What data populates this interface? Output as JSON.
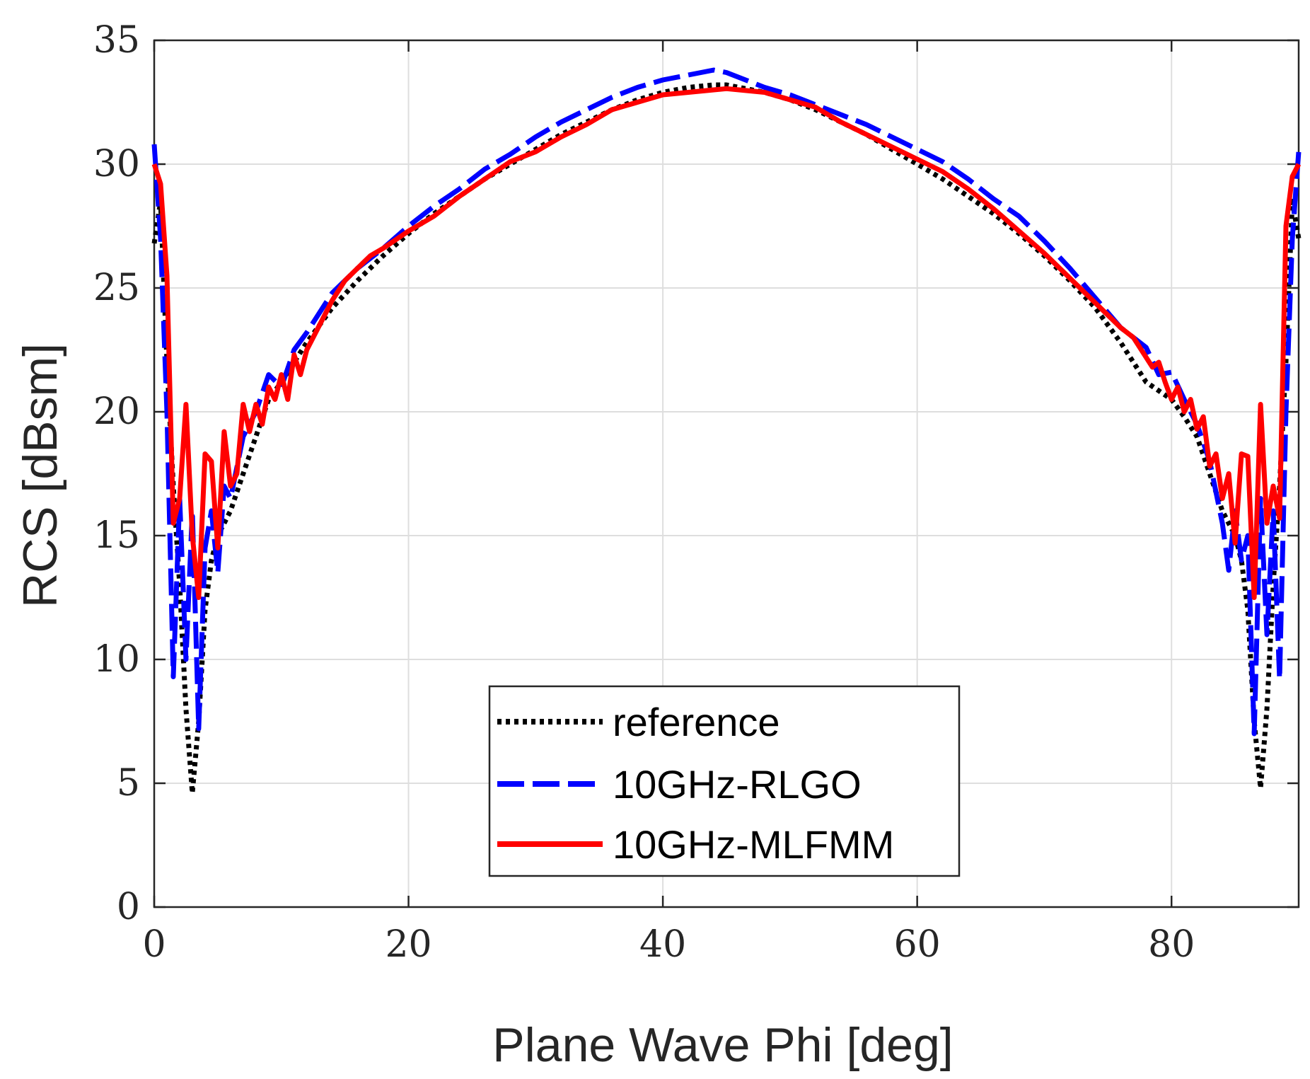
{
  "chart_data": {
    "type": "line",
    "title": "",
    "xlabel": "Plane Wave Phi [deg]",
    "ylabel": "RCS [dBsm]",
    "xlim": [
      0,
      90
    ],
    "ylim": [
      0,
      35
    ],
    "xticks": [
      0,
      20,
      40,
      60,
      80
    ],
    "yticks": [
      0,
      5,
      10,
      15,
      20,
      25,
      30,
      35
    ],
    "xtick_labels": [
      "0",
      "20",
      "40",
      "60",
      "80"
    ],
    "ytick_labels": [
      "0",
      "5",
      "10",
      "15",
      "20",
      "25",
      "30",
      "35"
    ],
    "grid": true,
    "legend_position": "bottom-center",
    "series": [
      {
        "name": "reference",
        "color": "#000000",
        "style": "dotted",
        "x": [
          0,
          0.5,
          1,
          1.5,
          2,
          2.5,
          3,
          3.5,
          4,
          4.5,
          5,
          5.5,
          6,
          7,
          8,
          9,
          10,
          12,
          14,
          16,
          18,
          20,
          22,
          24,
          26,
          28,
          30,
          32,
          34,
          36,
          38,
          40,
          42,
          44,
          45,
          46,
          48,
          50,
          52,
          54,
          56,
          58,
          60,
          62,
          64,
          66,
          68,
          70,
          72,
          74,
          76,
          78,
          80,
          81,
          82,
          83,
          84,
          84.5,
          85,
          85.5,
          86,
          86.5,
          87,
          87.5,
          88,
          88.5,
          89,
          89.5,
          90
        ],
        "y": [
          26.8,
          28.5,
          22,
          17,
          13,
          8,
          4.6,
          7.5,
          12,
          14,
          15,
          15.5,
          16,
          17.5,
          19,
          20.5,
          21.2,
          22.8,
          24.2,
          25.3,
          26.3,
          27.2,
          28,
          28.7,
          29.4,
          30,
          30.6,
          31.2,
          31.7,
          32.2,
          32.6,
          32.9,
          33.1,
          33.2,
          33.2,
          33.1,
          32.9,
          32.6,
          32.2,
          31.7,
          31.2,
          30.6,
          30,
          29.4,
          28.7,
          28,
          27.2,
          26.3,
          25.3,
          24.2,
          22.8,
          21.2,
          20.5,
          19.8,
          19,
          17.5,
          16,
          15.5,
          15,
          14,
          12,
          7.5,
          4.8,
          8,
          13,
          17,
          22,
          28.5,
          27
        ]
      },
      {
        "name": "10GHz-RLGO",
        "color": "#0000ff",
        "style": "dashed",
        "x": [
          0,
          0.5,
          1,
          1.5,
          2,
          2.5,
          3,
          3.5,
          4,
          4.5,
          5,
          5.5,
          6,
          7,
          8,
          9,
          10,
          11,
          12,
          14,
          16,
          18,
          20,
          22,
          24,
          26,
          28,
          30,
          32,
          34,
          36,
          38,
          40,
          42,
          44,
          45,
          46,
          48,
          50,
          52,
          54,
          56,
          58,
          60,
          62,
          64,
          66,
          68,
          70,
          72,
          74,
          76,
          78,
          79,
          80,
          81,
          82,
          83,
          84,
          84.5,
          85,
          85.5,
          86,
          86.5,
          87,
          87.5,
          88,
          88.5,
          89,
          89.5,
          90
        ],
        "y": [
          30.8,
          27,
          20,
          9.3,
          16.5,
          10,
          16,
          7.2,
          14.5,
          16,
          13.5,
          17,
          16.5,
          19,
          20,
          21.5,
          21,
          22.5,
          23.2,
          24.8,
          25.8,
          26.6,
          27.5,
          28.3,
          29,
          29.8,
          30.4,
          31.1,
          31.7,
          32.2,
          32.7,
          33.1,
          33.4,
          33.6,
          33.8,
          33.7,
          33.5,
          33.1,
          32.8,
          32.4,
          32,
          31.6,
          31.1,
          30.6,
          30.1,
          29.4,
          28.6,
          27.9,
          26.9,
          25.8,
          24.6,
          23.4,
          22.6,
          21.5,
          21.6,
          20.5,
          19.5,
          18,
          15.5,
          13.6,
          16,
          14,
          15,
          7,
          16.5,
          11,
          16,
          9.2,
          20,
          27,
          30.5
        ]
      },
      {
        "name": "10GHz-MLFMM",
        "color": "#ff0000",
        "style": "solid",
        "x": [
          0,
          0.5,
          1,
          1.5,
          2,
          2.5,
          3,
          3.5,
          4,
          4.5,
          5,
          5.5,
          6,
          6.5,
          7,
          7.5,
          8,
          8.5,
          9,
          9.5,
          10,
          10.5,
          11,
          11.5,
          12,
          13,
          14,
          15,
          16,
          17,
          18,
          20,
          22,
          24,
          26,
          28,
          30,
          32,
          34,
          36,
          38,
          40,
          42,
          44,
          45,
          46,
          48,
          50,
          52,
          54,
          56,
          58,
          60,
          62,
          64,
          66,
          68,
          70,
          72,
          74,
          76,
          77,
          78,
          78.5,
          79,
          79.5,
          80,
          80.5,
          81,
          81.5,
          82,
          82.5,
          83,
          83.5,
          84,
          84.5,
          85,
          85.5,
          86,
          86.5,
          87,
          87.5,
          88,
          88.5,
          89,
          89.5,
          90
        ],
        "y": [
          30,
          29.2,
          25.5,
          15.5,
          16.5,
          20.3,
          15,
          12.5,
          18.3,
          18,
          14.5,
          19.2,
          17,
          17.5,
          20.3,
          19.2,
          20.3,
          19.5,
          21,
          20.5,
          21.5,
          20.5,
          22.3,
          21.5,
          22.5,
          23.5,
          24.5,
          25.3,
          25.8,
          26.3,
          26.6,
          27.3,
          27.9,
          28.7,
          29.4,
          30.1,
          30.5,
          31.1,
          31.6,
          32.2,
          32.5,
          32.8,
          32.9,
          33.0,
          33.05,
          33.0,
          32.9,
          32.6,
          32.3,
          31.7,
          31.2,
          30.7,
          30.2,
          29.7,
          29.0,
          28.2,
          27.3,
          26.4,
          25.4,
          24.4,
          23.4,
          23,
          22.2,
          21.8,
          22,
          21.2,
          20.5,
          21,
          20,
          20.5,
          19.3,
          19.8,
          17.8,
          18.3,
          16.5,
          17.5,
          14.7,
          18.3,
          18.2,
          12.5,
          20.3,
          15.5,
          17,
          15.7,
          27.5,
          29.5,
          30
        ]
      }
    ]
  }
}
